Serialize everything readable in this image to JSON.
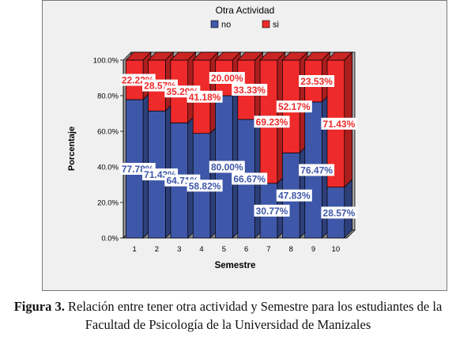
{
  "chart_data": {
    "type": "bar",
    "stacked": true,
    "percent": true,
    "three_d": true,
    "legend_title": "Otra Actividad",
    "legend_position": "top",
    "xlabel": "Semestre",
    "ylabel": "Porcentaje",
    "categories": [
      "1",
      "2",
      "3",
      "4",
      "5",
      "6",
      "7",
      "8",
      "9",
      "10"
    ],
    "ylim": [
      0,
      100
    ],
    "yticks": [
      "0.0%",
      "20.0%",
      "40.0%",
      "60.0%",
      "80.0%",
      "100.0%"
    ],
    "series": [
      {
        "name": "no",
        "color": "#3e57a8",
        "values": [
          77.78,
          71.43,
          64.71,
          58.82,
          80.0,
          66.67,
          30.77,
          47.83,
          76.47,
          28.57
        ],
        "labels": [
          "77.78%",
          "71.43%",
          "64.71%",
          "58.82%",
          "80.00%",
          "66.67%",
          "30.77%",
          "47.83%",
          "76.47%",
          "28.57%"
        ]
      },
      {
        "name": "si",
        "color": "#ee2a2a",
        "values": [
          22.22,
          28.57,
          35.29,
          41.18,
          20.0,
          33.33,
          69.23,
          52.17,
          23.53,
          71.43
        ],
        "labels": [
          "22.22%",
          "28.57%",
          "35.29%",
          "41.18%",
          "20.00%",
          "33.33%",
          "69.23%",
          "52.17%",
          "23.53%",
          "71.43%"
        ]
      }
    ]
  },
  "caption": {
    "lead": "Figura 3.",
    "text": " Relación entre tener otra actividad y Semestre para los estudiantes de la Facultad de Psicología de la Universidad de Manizales"
  }
}
